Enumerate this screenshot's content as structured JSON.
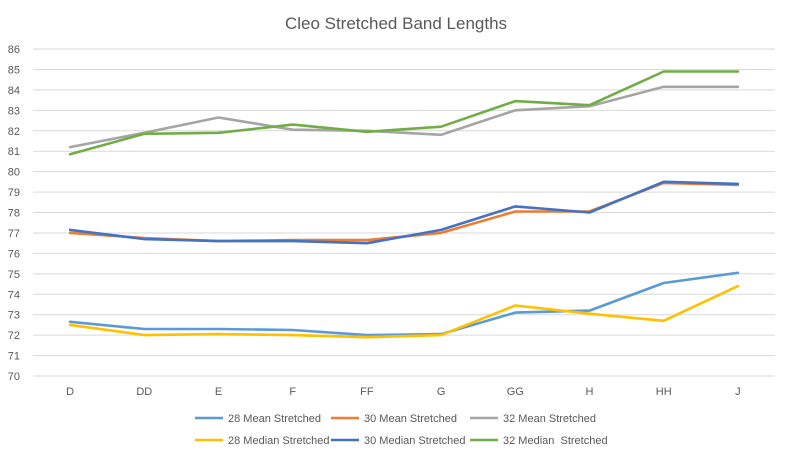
{
  "chart_data": {
    "type": "line",
    "title": "Cleo Stretched Band Lengths",
    "xlabel": "",
    "ylabel": "",
    "categories": [
      "D",
      "DD",
      "E",
      "F",
      "FF",
      "G",
      "GG",
      "H",
      "HH",
      "J"
    ],
    "ylim": [
      70,
      86
    ],
    "yticks": [
      "70",
      "71",
      "72",
      "73",
      "74",
      "75",
      "76",
      "77",
      "78",
      "79",
      "80",
      "81",
      "82",
      "83",
      "84",
      "85",
      "86"
    ],
    "grid": true,
    "legend_position": "bottom",
    "series": [
      {
        "name": "28 Mean Stretched",
        "color": "#5B9BD5",
        "values": [
          72.65,
          72.3,
          72.3,
          72.25,
          72.0,
          72.05,
          73.1,
          73.2,
          74.55,
          75.05
        ]
      },
      {
        "name": "30 Mean Stretched",
        "color": "#ED7D31",
        "values": [
          77.0,
          76.75,
          76.6,
          76.65,
          76.65,
          77.0,
          78.05,
          78.05,
          79.45,
          79.35
        ]
      },
      {
        "name": "32 Mean Stretched",
        "color": "#A5A5A5",
        "values": [
          81.2,
          81.9,
          82.65,
          82.05,
          82.0,
          81.8,
          83.0,
          83.2,
          84.15,
          84.15
        ]
      },
      {
        "name": "28 Median Stretched",
        "color": "#FFC000",
        "values": [
          72.5,
          72.0,
          72.05,
          72.0,
          71.9,
          72.0,
          73.45,
          73.05,
          72.7,
          74.4
        ]
      },
      {
        "name": "30 Median Stretched",
        "color": "#4472C4",
        "values": [
          77.15,
          76.7,
          76.6,
          76.6,
          76.5,
          77.15,
          78.3,
          78.0,
          79.5,
          79.4
        ]
      },
      {
        "name": "32 Median  Stretched",
        "color": "#70AD47",
        "values": [
          80.85,
          81.85,
          81.9,
          82.3,
          81.95,
          82.2,
          83.45,
          83.25,
          84.9,
          84.9
        ]
      }
    ]
  }
}
